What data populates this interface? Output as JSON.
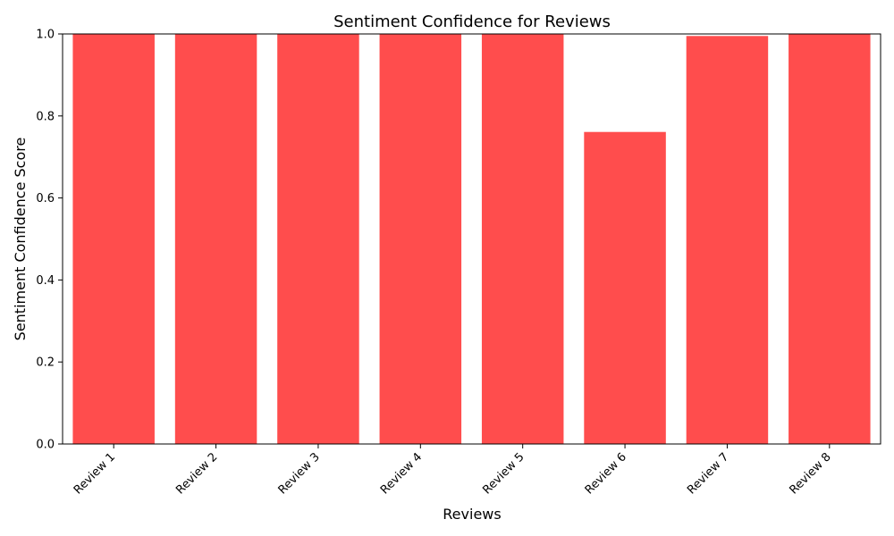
{
  "chart_data": {
    "type": "bar",
    "title": "Sentiment Confidence for Reviews",
    "xlabel": "Reviews",
    "ylabel": "Sentiment Confidence Score",
    "categories": [
      "Review 1",
      "Review 2",
      "Review 3",
      "Review 4",
      "Review 5",
      "Review 6",
      "Review 7",
      "Review 8"
    ],
    "values": [
      1.0,
      1.0,
      1.0,
      1.0,
      1.0,
      0.761,
      0.995,
      1.0
    ],
    "ylim": [
      0,
      1
    ],
    "yticks": [
      0.0,
      0.2,
      0.4,
      0.6,
      0.8,
      1.0
    ],
    "ytick_labels": [
      "0.0",
      "0.2",
      "0.4",
      "0.6",
      "0.8",
      "1.0"
    ],
    "grid": false,
    "legend": "none",
    "bar_color": "#ff4d4d"
  }
}
